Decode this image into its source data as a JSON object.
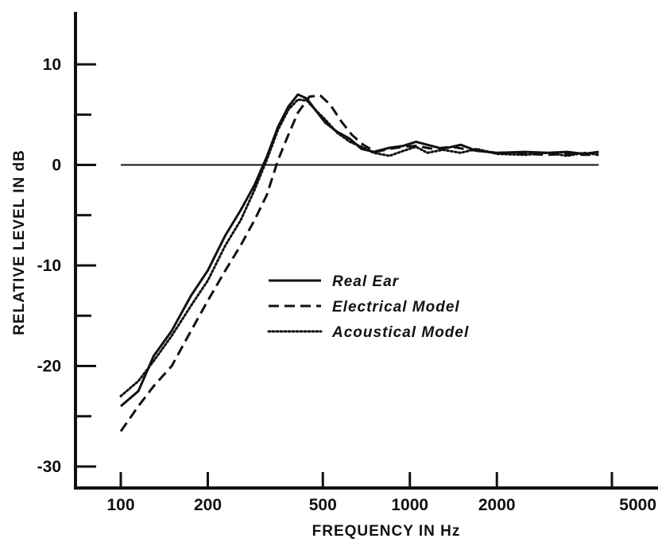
{
  "chart_data": {
    "type": "line",
    "title": "",
    "xlabel": "FREQUENCY IN Hz",
    "ylabel": "RELATIVE LEVEL IN dB",
    "x_scale": "log",
    "xlim": [
      100,
      5000
    ],
    "ylim": [
      -30,
      10
    ],
    "x_ticks": [
      100,
      200,
      500,
      1000,
      2000,
      5000
    ],
    "x_tick_labels": [
      "100",
      "200",
      "500",
      "1000",
      "2000",
      "5000"
    ],
    "y_ticks": [
      10,
      5,
      0,
      -5,
      -10,
      -15,
      -20,
      -25,
      -30
    ],
    "y_tick_labels": [
      "10",
      "0",
      "-10",
      "-20",
      "-30"
    ],
    "y_labeled_ticks": [
      10,
      0,
      -10,
      -20,
      -30
    ],
    "reference_line_y": 0,
    "grid": false,
    "legend_position": "center",
    "series": [
      {
        "name": "Real Ear",
        "style": "solid",
        "color": "#111111",
        "points": [
          [
            100,
            -24
          ],
          [
            115,
            -22.5
          ],
          [
            130,
            -19
          ],
          [
            150,
            -16.5
          ],
          [
            175,
            -13
          ],
          [
            200,
            -10.5
          ],
          [
            230,
            -7
          ],
          [
            260,
            -4.5
          ],
          [
            290,
            -2
          ],
          [
            320,
            0.8
          ],
          [
            350,
            3.8
          ],
          [
            380,
            5.8
          ],
          [
            410,
            7
          ],
          [
            440,
            6.6
          ],
          [
            470,
            5.5
          ],
          [
            510,
            4.2
          ],
          [
            560,
            3.3
          ],
          [
            620,
            2.6
          ],
          [
            680,
            1.6
          ],
          [
            750,
            1.3
          ],
          [
            850,
            1.7
          ],
          [
            950,
            1.9
          ],
          [
            1050,
            2.3
          ],
          [
            1150,
            2
          ],
          [
            1300,
            1.6
          ],
          [
            1500,
            2
          ],
          [
            1700,
            1.4
          ],
          [
            2000,
            1.2
          ],
          [
            2500,
            1.3
          ],
          [
            3000,
            1.2
          ],
          [
            3500,
            1.3
          ],
          [
            4000,
            1.1
          ],
          [
            4500,
            1.3
          ]
        ]
      },
      {
        "name": "Electrical Model",
        "style": "dashed",
        "color": "#111111",
        "points": [
          [
            100,
            -26.5
          ],
          [
            115,
            -24
          ],
          [
            130,
            -22
          ],
          [
            150,
            -20
          ],
          [
            175,
            -16.5
          ],
          [
            200,
            -13.5
          ],
          [
            230,
            -10.5
          ],
          [
            260,
            -8
          ],
          [
            290,
            -5.5
          ],
          [
            320,
            -3
          ],
          [
            350,
            0.5
          ],
          [
            380,
            3
          ],
          [
            410,
            5.2
          ],
          [
            450,
            6.8
          ],
          [
            490,
            6.9
          ],
          [
            530,
            6
          ],
          [
            580,
            4.3
          ],
          [
            630,
            3
          ],
          [
            690,
            2
          ],
          [
            760,
            1.3
          ],
          [
            850,
            1.6
          ],
          [
            950,
            1.8
          ],
          [
            1050,
            1.9
          ],
          [
            1200,
            1.6
          ],
          [
            1400,
            1.8
          ],
          [
            1600,
            1.5
          ],
          [
            2000,
            1.2
          ],
          [
            2500,
            1.1
          ],
          [
            3000,
            1
          ],
          [
            3500,
            1.1
          ],
          [
            4000,
            1
          ],
          [
            4500,
            1
          ]
        ]
      },
      {
        "name": "Acoustical Model",
        "style": "dotted",
        "color": "#111111",
        "points": [
          [
            100,
            -23
          ],
          [
            115,
            -21.5
          ],
          [
            130,
            -19.5
          ],
          [
            150,
            -17
          ],
          [
            175,
            -14
          ],
          [
            200,
            -11.5
          ],
          [
            230,
            -8
          ],
          [
            260,
            -5.5
          ],
          [
            290,
            -2.5
          ],
          [
            320,
            0.5
          ],
          [
            350,
            3.5
          ],
          [
            380,
            5.5
          ],
          [
            410,
            6.5
          ],
          [
            440,
            6.4
          ],
          [
            470,
            5.5
          ],
          [
            510,
            4.5
          ],
          [
            560,
            3.2
          ],
          [
            620,
            2.3
          ],
          [
            680,
            1.8
          ],
          [
            750,
            1.2
          ],
          [
            850,
            0.9
          ],
          [
            950,
            1.4
          ],
          [
            1050,
            1.8
          ],
          [
            1150,
            1.2
          ],
          [
            1300,
            1.5
          ],
          [
            1500,
            1.2
          ],
          [
            1700,
            1.6
          ],
          [
            2000,
            1.1
          ],
          [
            2500,
            1
          ],
          [
            3000,
            1.2
          ],
          [
            3500,
            0.9
          ],
          [
            4000,
            1.2
          ],
          [
            4500,
            1
          ]
        ]
      }
    ]
  }
}
